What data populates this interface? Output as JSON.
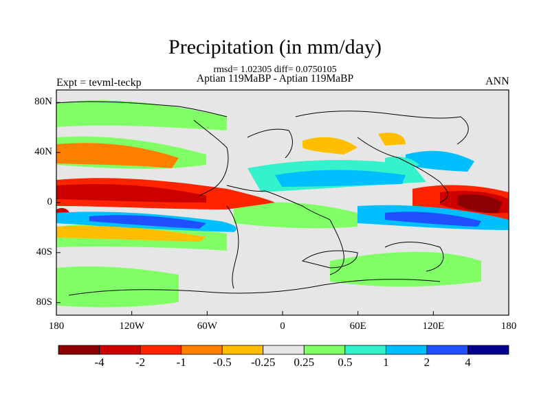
{
  "title": "Precipitation (in mm/day)",
  "stats": "rmsd= 1.02305 diff= 0.0750105",
  "periods": "Aptian   119MaBP - Aptian   119MaBP",
  "experiment": "Expt = tevml-teckp",
  "season": "ANN",
  "y_axis": {
    "ticks": [
      {
        "label": "80N"
      },
      {
        "label": "40N"
      },
      {
        "label": "0"
      },
      {
        "label": "40S"
      },
      {
        "label": "80S"
      }
    ]
  },
  "x_axis": {
    "ticks": [
      {
        "label": "180"
      },
      {
        "label": "120W"
      },
      {
        "label": "60W"
      },
      {
        "label": "0"
      },
      {
        "label": "60E"
      },
      {
        "label": "120E"
      },
      {
        "label": "180"
      }
    ]
  },
  "colorbar": {
    "colors": [
      "#8b0000",
      "#cd0000",
      "#ff2400",
      "#ff7f00",
      "#ffbf00",
      "#e6e6e6",
      "#80ff66",
      "#33f2cc",
      "#00bfff",
      "#1f4fff",
      "#00008b"
    ],
    "labels": [
      "-4",
      "-2",
      "-1",
      "-0.5",
      "-0.25",
      "0.25",
      "0.5",
      "1",
      "2",
      "4"
    ]
  }
}
